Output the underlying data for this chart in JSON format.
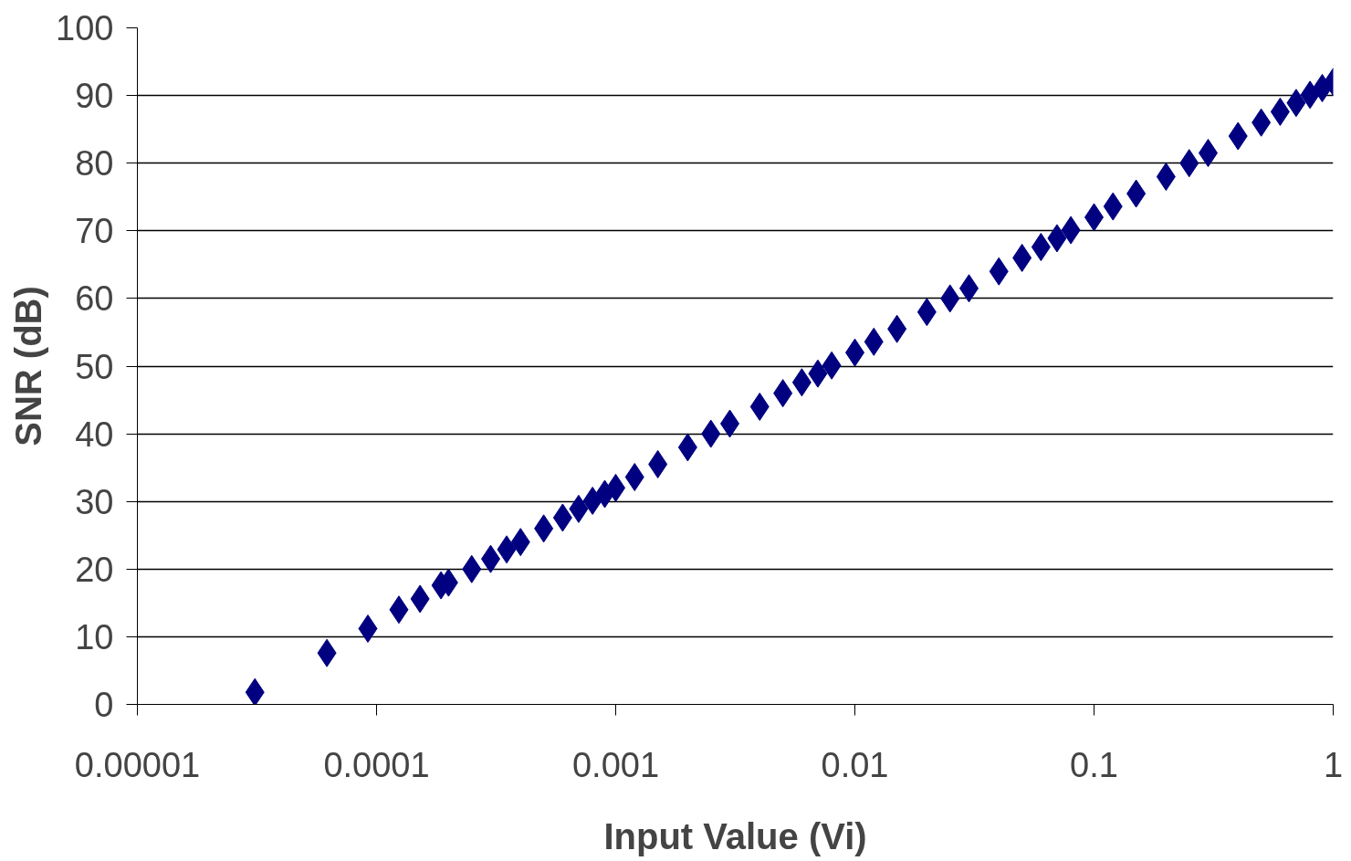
{
  "chart_data": {
    "type": "scatter",
    "xlabel": "Input Value (Vi)",
    "ylabel": "SNR (dB)",
    "log": "x",
    "grid": "y",
    "marker": "diamond",
    "xlim": [
      1e-05,
      1
    ],
    "xticks": [
      {
        "value": 1e-05,
        "label": "0.00001"
      },
      {
        "value": 0.0001,
        "label": "0.0001"
      },
      {
        "value": 0.001,
        "label": "0.001"
      },
      {
        "value": 0.01,
        "label": "0.01"
      },
      {
        "value": 0.1,
        "label": "0.1"
      },
      {
        "value": 1,
        "label": "1"
      }
    ],
    "ylim": [
      0,
      100
    ],
    "yticks": [
      0,
      10,
      20,
      30,
      40,
      50,
      60,
      70,
      80,
      90,
      100
    ],
    "series": [
      {
        "color": "#000080",
        "x": [
          3.1e-05,
          6.2e-05,
          9.2e-05,
          0.000124,
          0.000152,
          0.000186,
          0.0002,
          0.00025,
          0.0003,
          0.00035,
          0.0004,
          0.0005,
          0.0006,
          0.0007,
          0.0008,
          0.0009,
          0.001,
          0.0012,
          0.0015,
          0.002,
          0.0025,
          0.003,
          0.004,
          0.005,
          0.006,
          0.007,
          0.008,
          0.01,
          0.012,
          0.015,
          0.02,
          0.025,
          0.03,
          0.04,
          0.05,
          0.06,
          0.07,
          0.08,
          0.1,
          0.12,
          0.15,
          0.2,
          0.25,
          0.3,
          0.4,
          0.5,
          0.6,
          0.7,
          0.8,
          0.9,
          1
        ],
        "values": [
          1.8,
          7.6,
          11.2,
          14.0,
          15.6,
          17.6,
          18.0,
          20.0,
          21.5,
          22.9,
          24.0,
          26.0,
          27.6,
          28.9,
          30.1,
          31.1,
          32.0,
          33.6,
          35.5,
          38.0,
          40.0,
          41.5,
          44.0,
          46.0,
          47.6,
          48.9,
          50.1,
          52.0,
          53.6,
          55.5,
          58.0,
          60.0,
          61.5,
          64.0,
          66.0,
          67.6,
          68.9,
          70.1,
          72.0,
          73.6,
          75.5,
          78.0,
          80.0,
          81.5,
          84.0,
          86.0,
          87.6,
          88.9,
          90.1,
          91.1,
          92.0
        ]
      }
    ]
  }
}
